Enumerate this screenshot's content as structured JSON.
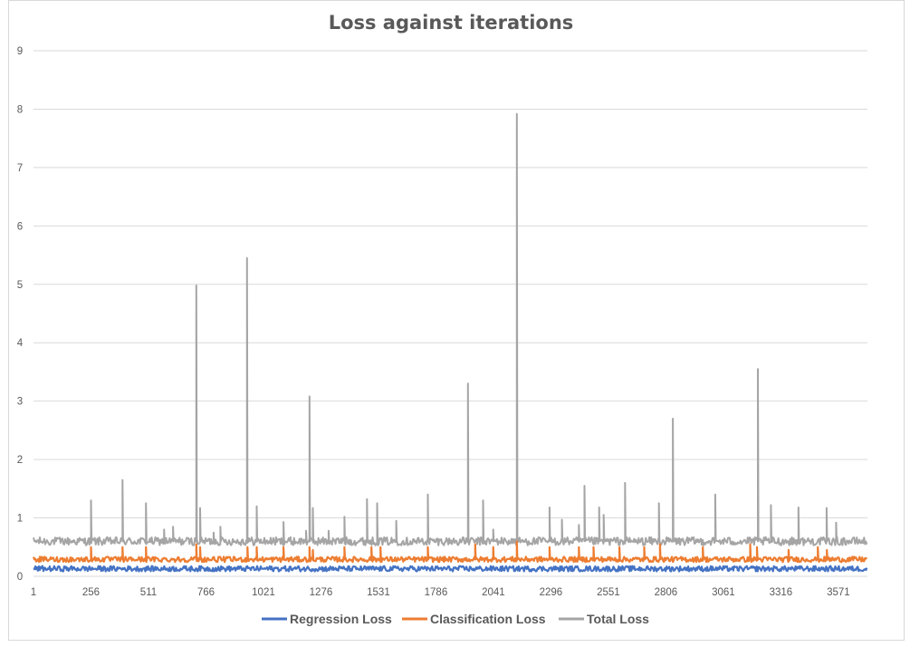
{
  "chart_data": {
    "type": "line",
    "title": "Loss against iterations",
    "xlabel": "",
    "ylabel": "",
    "ylim": [
      0,
      9
    ],
    "yticks": [
      "0",
      "1",
      "2",
      "3",
      "4",
      "5",
      "6",
      "7",
      "8",
      "9"
    ],
    "xlim": [
      1,
      3700
    ],
    "xticks": [
      "1",
      "256",
      "511",
      "766",
      "1021",
      "1276",
      "1531",
      "1786",
      "2041",
      "2296",
      "2551",
      "2806",
      "3061",
      "3316",
      "3571"
    ],
    "grid": true,
    "legend_position": "bottom",
    "series": [
      {
        "name": "Regression Loss",
        "color": "#4472c4",
        "baseline": 0.13,
        "spikes": []
      },
      {
        "name": "Classification Loss",
        "color": "#ed7d31",
        "baseline": 0.29,
        "spikes": [
          [
            256,
            0.5
          ],
          [
            396,
            0.5
          ],
          [
            500,
            0.5
          ],
          [
            723,
            0.55
          ],
          [
            740,
            0.5
          ],
          [
            950,
            0.5
          ],
          [
            991,
            0.5
          ],
          [
            1110,
            0.5
          ],
          [
            1225,
            0.5
          ],
          [
            1240,
            0.45
          ],
          [
            1380,
            0.5
          ],
          [
            1500,
            0.5
          ],
          [
            1540,
            0.5
          ],
          [
            1750,
            0.5
          ],
          [
            1960,
            0.55
          ],
          [
            2040,
            0.5
          ],
          [
            2145,
            0.6
          ],
          [
            2290,
            0.5
          ],
          [
            2420,
            0.5
          ],
          [
            2485,
            0.5
          ],
          [
            2600,
            0.5
          ],
          [
            2710,
            0.5
          ],
          [
            2780,
            0.55
          ],
          [
            2970,
            0.5
          ],
          [
            3180,
            0.55
          ],
          [
            3210,
            0.5
          ],
          [
            3350,
            0.45
          ],
          [
            3480,
            0.5
          ],
          [
            3520,
            0.45
          ],
          [
            3700,
            0.5
          ]
        ]
      },
      {
        "name": "Total Loss",
        "color": "#a5a5a5",
        "baseline": 0.6,
        "spikes": [
          [
            256,
            1.3
          ],
          [
            396,
            1.65
          ],
          [
            500,
            1.25
          ],
          [
            580,
            0.8
          ],
          [
            620,
            0.85
          ],
          [
            723,
            4.98
          ],
          [
            740,
            1.17
          ],
          [
            800,
            0.75
          ],
          [
            830,
            0.85
          ],
          [
            948,
            5.45
          ],
          [
            991,
            1.2
          ],
          [
            1110,
            0.93
          ],
          [
            1210,
            0.78
          ],
          [
            1225,
            3.08
          ],
          [
            1240,
            1.17
          ],
          [
            1310,
            0.78
          ],
          [
            1380,
            1.02
          ],
          [
            1480,
            1.32
          ],
          [
            1525,
            1.25
          ],
          [
            1610,
            0.95
          ],
          [
            1750,
            1.4
          ],
          [
            1928,
            3.3
          ],
          [
            1995,
            1.3
          ],
          [
            2040,
            0.8
          ],
          [
            2145,
            7.92
          ],
          [
            2290,
            1.18
          ],
          [
            2345,
            0.97
          ],
          [
            2420,
            0.88
          ],
          [
            2445,
            1.55
          ],
          [
            2510,
            1.18
          ],
          [
            2530,
            1.05
          ],
          [
            2625,
            1.6
          ],
          [
            2775,
            1.25
          ],
          [
            2837,
            2.7
          ],
          [
            3025,
            1.4
          ],
          [
            3214,
            3.55
          ],
          [
            3272,
            1.22
          ],
          [
            3394,
            1.18
          ],
          [
            3519,
            1.17
          ],
          [
            3561,
            0.92
          ],
          [
            3700,
            1.15
          ]
        ]
      }
    ]
  }
}
